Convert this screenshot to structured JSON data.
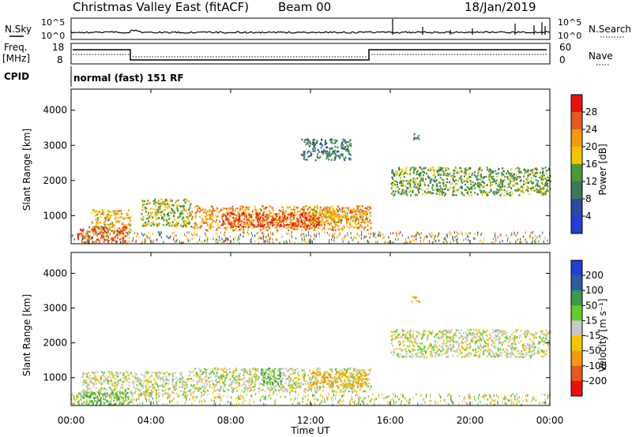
{
  "header": {
    "title": "Christmas Valley East (fitACF)",
    "beam": "Beam 00",
    "date": "18/Jan/2019"
  },
  "top_panels": {
    "sky_label": "N.Sky",
    "search_label": "N.Search",
    "sky_scale_top": "10^5",
    "sky_scale_bottom": "10^0",
    "search_scale_top": "10^5",
    "search_scale_bottom": "10^0",
    "freq_label": "Freq.",
    "freq_unit": "[MHz]",
    "freq_tick_top": "18",
    "freq_tick_bottom": "8",
    "nave_label": "Nave",
    "nave_tick_top": "60",
    "nave_tick_bottom": "0",
    "cpid_label": "CPID",
    "cpid_value": "normal (fast) 151 RF"
  },
  "colors": {
    "power": [
      "#1f3fd6",
      "#2d4aa0",
      "#3a7a5c",
      "#4a9a3a",
      "#f2c500",
      "#f39c12",
      "#e8581f",
      "#ea1010"
    ],
    "velocity": [
      "#ea1010",
      "#e8581f",
      "#f39c12",
      "#f2c500",
      "#c8c8c8",
      "#62cc2e",
      "#3a9a4a",
      "#2d5aa0",
      "#1f3fd6"
    ],
    "ground": "#b9b9b9"
  },
  "chart_data": [
    {
      "type": "heatmap",
      "name": "power-panel",
      "xlabel": "",
      "ylabel": "Slant Range [km]",
      "x_ticks": [
        "00:00",
        "04:00",
        "08:00",
        "12:00",
        "16:00",
        "20:00",
        "00:00"
      ],
      "y_ticks": [
        1000,
        2000,
        3000,
        4000
      ],
      "xlim": [
        0,
        24
      ],
      "ylim": [
        200,
        4600
      ],
      "colorbar": {
        "label": "Power [dB]",
        "ticks": [
          "4",
          "8",
          "12",
          "16",
          "20",
          "24",
          "28"
        ],
        "range": [
          0,
          32
        ]
      },
      "regions": [
        {
          "x": [
            1.0,
            3.0
          ],
          "y": [
            500,
            1200
          ],
          "value": 20
        },
        {
          "x": [
            0.3,
            2.8
          ],
          "y": [
            250,
            700
          ],
          "value": 26
        },
        {
          "x": [
            3.5,
            6.0
          ],
          "y": [
            700,
            1500
          ],
          "value": 16
        },
        {
          "x": [
            6.0,
            15.0
          ],
          "y": [
            600,
            1300
          ],
          "value": 22
        },
        {
          "x": [
            7.5,
            12.5
          ],
          "y": [
            700,
            1100
          ],
          "value": 28
        },
        {
          "x": [
            12.0,
            14.8
          ],
          "y": [
            800,
            1200
          ],
          "value": 20
        },
        {
          "x": [
            16.0,
            24.0
          ],
          "y": [
            1600,
            2400
          ],
          "value": 14
        },
        {
          "x": [
            17.0,
            17.5
          ],
          "y": [
            3200,
            3350
          ],
          "value": 10
        },
        {
          "x": [
            11.5,
            14.0
          ],
          "y": [
            2600,
            3200
          ],
          "value": 10
        }
      ]
    },
    {
      "type": "heatmap",
      "name": "velocity-panel",
      "xlabel": "Time UT",
      "ylabel": "Slant Range [km]",
      "x_ticks": [
        "00:00",
        "04:00",
        "08:00",
        "12:00",
        "16:00",
        "20:00",
        "00:00"
      ],
      "y_ticks": [
        1000,
        2000,
        3000,
        4000
      ],
      "xlim": [
        0,
        24
      ],
      "ylim": [
        200,
        4600
      ],
      "colorbar": {
        "label": "Velocity [m s⁻¹]",
        "ticks": [
          "200",
          "100",
          "50",
          "15",
          "-15",
          "-50",
          "-100",
          "-200"
        ],
        "range": [
          -250,
          250
        ]
      },
      "regions": [
        {
          "x": [
            0.5,
            6.0
          ],
          "y": [
            500,
            1200
          ],
          "value": 0
        },
        {
          "x": [
            0.2,
            3.0
          ],
          "y": [
            250,
            600
          ],
          "value": 40
        },
        {
          "x": [
            6.0,
            15.0
          ],
          "y": [
            600,
            1300
          ],
          "value": 0
        },
        {
          "x": [
            12.0,
            14.8
          ],
          "y": [
            750,
            1200
          ],
          "value": -60
        },
        {
          "x": [
            9.5,
            10.5
          ],
          "y": [
            800,
            1300
          ],
          "value": 40
        },
        {
          "x": [
            16.0,
            24.0
          ],
          "y": [
            1600,
            2400
          ],
          "value": 0
        },
        {
          "x": [
            17.0,
            17.5
          ],
          "y": [
            3200,
            3350
          ],
          "value": -60
        }
      ]
    }
  ]
}
